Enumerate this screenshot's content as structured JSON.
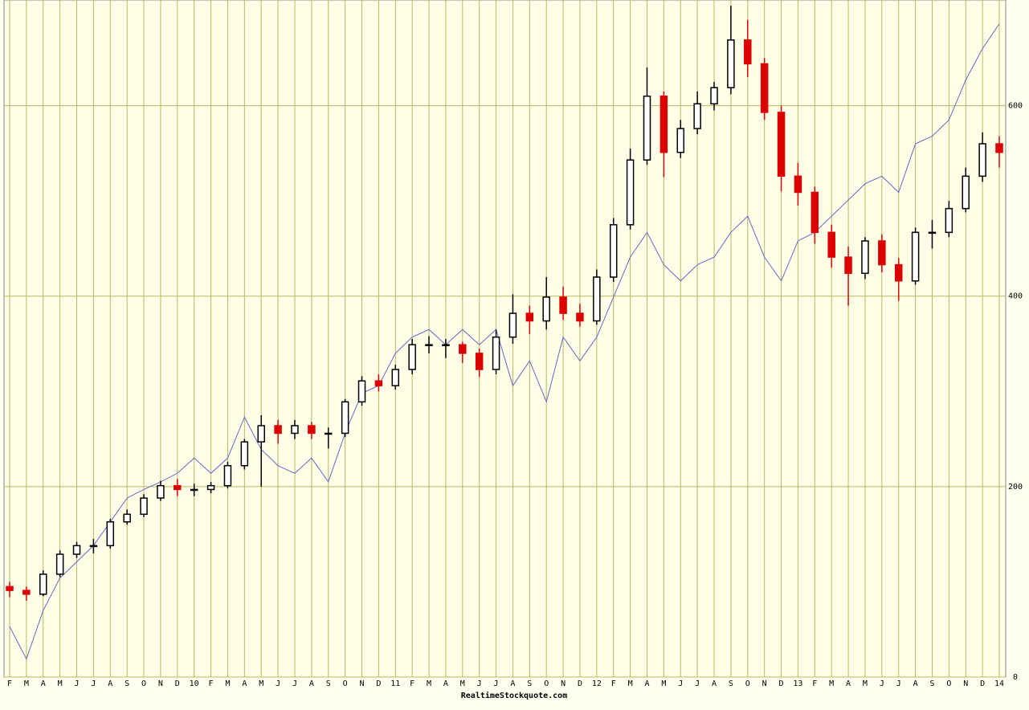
{
  "chart_data": {
    "type": "candlestick",
    "categories": [
      "F",
      "M",
      "A",
      "M",
      "J",
      "J",
      "A",
      "S",
      "O",
      "N",
      "D",
      "10",
      "F",
      "M",
      "A",
      "M",
      "J",
      "J",
      "A",
      "S",
      "O",
      "N",
      "D",
      "11",
      "F",
      "M",
      "A",
      "M",
      "J",
      "J",
      "A",
      "S",
      "O",
      "N",
      "D",
      "12",
      "F",
      "M",
      "A",
      "M",
      "J",
      "J",
      "A",
      "S",
      "O",
      "N",
      "D",
      "13",
      "F",
      "M",
      "A",
      "M",
      "J",
      "J",
      "A",
      "S",
      "O",
      "N",
      "D",
      "14"
    ],
    "open": [
      95,
      91,
      87,
      108,
      129,
      138,
      138,
      163,
      171,
      188,
      201,
      197,
      197,
      201,
      222,
      247,
      264,
      256,
      264,
      256,
      256,
      289,
      311,
      306,
      323,
      349,
      349,
      349,
      340,
      323,
      357,
      382,
      374,
      399,
      382,
      374,
      420,
      475,
      543,
      610,
      551,
      576,
      602,
      619,
      669,
      644,
      593,
      526,
      509,
      467,
      441,
      424,
      458,
      433,
      416,
      467,
      467,
      492,
      526,
      560
    ],
    "high": [
      100,
      95,
      112,
      133,
      142,
      145,
      166,
      176,
      192,
      206,
      208,
      203,
      205,
      226,
      250,
      275,
      270,
      270,
      268,
      262,
      292,
      316,
      318,
      328,
      355,
      358,
      355,
      352,
      345,
      365,
      402,
      390,
      420,
      410,
      392,
      428,
      482,
      555,
      640,
      615,
      585,
      615,
      625,
      705,
      690,
      650,
      600,
      540,
      515,
      475,
      452,
      462,
      465,
      440,
      472,
      480,
      500,
      535,
      572,
      568
    ],
    "low": [
      84,
      80,
      85,
      105,
      125,
      130,
      135,
      160,
      168,
      185,
      190,
      190,
      193,
      198,
      218,
      200,
      245,
      250,
      250,
      240,
      252,
      285,
      300,
      302,
      318,
      340,
      335,
      330,
      315,
      318,
      350,
      360,
      365,
      375,
      368,
      370,
      415,
      470,
      538,
      525,
      545,
      570,
      595,
      612,
      630,
      585,
      510,
      495,
      455,
      430,
      390,
      418,
      425,
      395,
      412,
      450,
      462,
      488,
      520,
      535
    ],
    "close": [
      91,
      87,
      108,
      129,
      138,
      138,
      163,
      171,
      188,
      201,
      197,
      197,
      201,
      222,
      247,
      264,
      256,
      264,
      256,
      256,
      289,
      311,
      306,
      323,
      349,
      349,
      349,
      340,
      323,
      357,
      382,
      374,
      399,
      382,
      374,
      420,
      475,
      543,
      610,
      551,
      576,
      602,
      619,
      669,
      644,
      593,
      526,
      509,
      467,
      441,
      424,
      458,
      433,
      416,
      467,
      467,
      492,
      526,
      560,
      551
    ],
    "up_color": "#000000",
    "down_color": "#dd0000",
    "comparison": {
      "color": "#6666cc",
      "values": [
        53,
        19,
        70,
        104,
        121,
        138,
        163,
        188,
        197,
        205,
        214,
        230,
        214,
        230,
        273,
        239,
        222,
        214,
        230,
        205,
        256,
        298,
        306,
        340,
        357,
        365,
        349,
        365,
        349,
        365,
        306,
        332,
        289,
        357,
        332,
        357,
        399,
        441,
        467,
        433,
        416,
        433,
        441,
        467,
        484,
        441,
        416,
        458,
        467,
        484,
        501,
        518,
        526,
        509,
        560,
        568,
        585,
        627,
        660,
        686
      ]
    },
    "ylim": [
      0,
      711
    ],
    "yticks": [
      0,
      200,
      400,
      600
    ],
    "grid": true,
    "source": "RealtimeStockquote.com"
  }
}
